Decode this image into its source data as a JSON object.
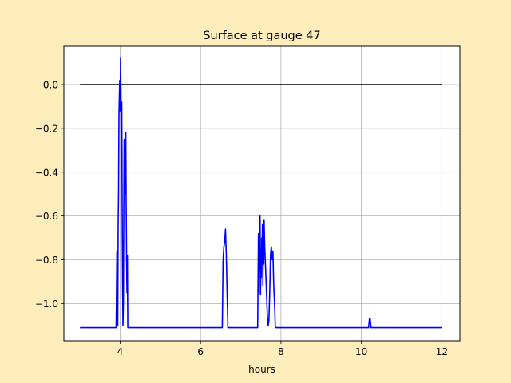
{
  "chart_data": {
    "type": "line",
    "title": "Surface at gauge 47",
    "xlabel": "hours",
    "ylabel": "",
    "xlim": [
      2.6,
      12.45
    ],
    "ylim": [
      -1.17,
      0.175
    ],
    "xticks": [
      4,
      6,
      8,
      10,
      12
    ],
    "xtick_labels": [
      "4",
      "6",
      "8",
      "10",
      "12"
    ],
    "yticks": [
      -1.0,
      -0.8,
      -0.6,
      -0.4,
      -0.2,
      0.0
    ],
    "ytick_labels": [
      "−1.0",
      "−0.8",
      "−0.6",
      "−0.4",
      "−0.2",
      "0.0"
    ],
    "grid": true,
    "series": [
      {
        "color": "#000000",
        "x": [
          3.0,
          12.0
        ],
        "y": [
          0.0,
          0.0
        ]
      },
      {
        "color": "#0000ff",
        "x": [
          3.0,
          3.9,
          3.92,
          3.93,
          3.94,
          3.95,
          3.96,
          3.97,
          3.98,
          3.99,
          4.0,
          4.01,
          4.02,
          4.03,
          4.04,
          4.05,
          4.06,
          4.07,
          4.08,
          4.09,
          4.1,
          4.11,
          4.12,
          4.13,
          4.14,
          4.15,
          4.16,
          4.17,
          4.18,
          4.19,
          4.2,
          4.21,
          4.22,
          4.23,
          4.24,
          4.25,
          4.26,
          4.27,
          4.28,
          4.29,
          4.3,
          4.31,
          4.32,
          4.33,
          4.34,
          6.54,
          6.56,
          6.58,
          6.6,
          6.62,
          6.64,
          6.66,
          6.68,
          6.7,
          7.42,
          7.44,
          7.45,
          7.46,
          7.47,
          7.48,
          7.49,
          7.5,
          7.51,
          7.52,
          7.53,
          7.54,
          7.55,
          7.56,
          7.57,
          7.58,
          7.59,
          7.6,
          7.62,
          7.64,
          7.66,
          7.68,
          7.7,
          7.72,
          7.74,
          7.76,
          7.78,
          7.8,
          7.82,
          7.84,
          7.86,
          7.88,
          7.9,
          7.92,
          7.94,
          7.96,
          7.98,
          8.0,
          8.02,
          10.18,
          10.2,
          10.22,
          10.24,
          10.26,
          12.0
        ],
        "y": [
          -1.11,
          -1.11,
          -0.76,
          -0.78,
          -1.1,
          -0.65,
          -0.5,
          -0.14,
          -0.05,
          0.02,
          -0.12,
          0.12,
          -0.04,
          -0.35,
          -0.08,
          -0.55,
          -0.9,
          -1.1,
          -1.0,
          -0.6,
          -0.25,
          -0.45,
          -0.3,
          -0.5,
          -0.22,
          -0.55,
          -0.8,
          -0.95,
          -0.78,
          -1.11,
          -1.11,
          -1.11,
          -1.11,
          -1.11,
          -1.11,
          -1.11,
          -1.11,
          -1.11,
          -1.11,
          -1.11,
          -1.11,
          -1.11,
          -1.11,
          -1.11,
          -1.11,
          -1.11,
          -0.8,
          -0.74,
          -0.72,
          -0.66,
          -0.78,
          -0.95,
          -1.11,
          -1.11,
          -1.11,
          -0.68,
          -0.95,
          -0.7,
          -0.62,
          -0.6,
          -0.96,
          -0.82,
          -0.88,
          -0.7,
          -0.75,
          -0.64,
          -0.92,
          -0.72,
          -0.82,
          -0.62,
          -0.7,
          -0.76,
          -0.85,
          -0.95,
          -1.05,
          -1.1,
          -1.08,
          -0.95,
          -0.78,
          -0.74,
          -0.8,
          -0.76,
          -0.92,
          -1.0,
          -1.11,
          -1.11,
          -1.11,
          -1.11,
          -1.11,
          -1.11,
          -1.11,
          -1.11,
          -1.11,
          -1.11,
          -1.07,
          -1.07,
          -1.11,
          -1.11,
          -1.11
        ]
      }
    ]
  }
}
